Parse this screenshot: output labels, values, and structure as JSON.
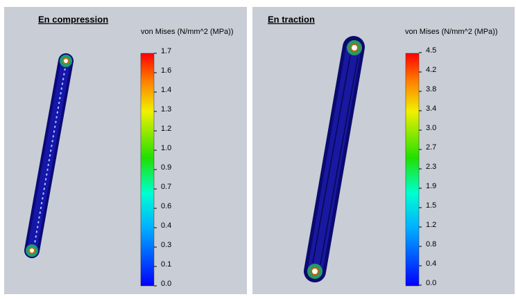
{
  "panels": [
    {
      "title": "En compression",
      "legend_title": "von Mises (N/mm^2 (MPa))",
      "scale": [
        "1.7",
        "1.6",
        "1.4",
        "1.3",
        "1.2",
        "1.0",
        "0.9",
        "0.7",
        "0.6",
        "0.4",
        "0.3",
        "0.1",
        "0.0"
      ]
    },
    {
      "title": "En traction",
      "legend_title": "von Mises (N/mm^2 (MPa))",
      "scale": [
        "4.5",
        "4.2",
        "3.8",
        "3.4",
        "3.0",
        "2.7",
        "2.3",
        "1.9",
        "1.5",
        "1.2",
        "0.8",
        "0.4",
        "0.0"
      ]
    }
  ]
}
